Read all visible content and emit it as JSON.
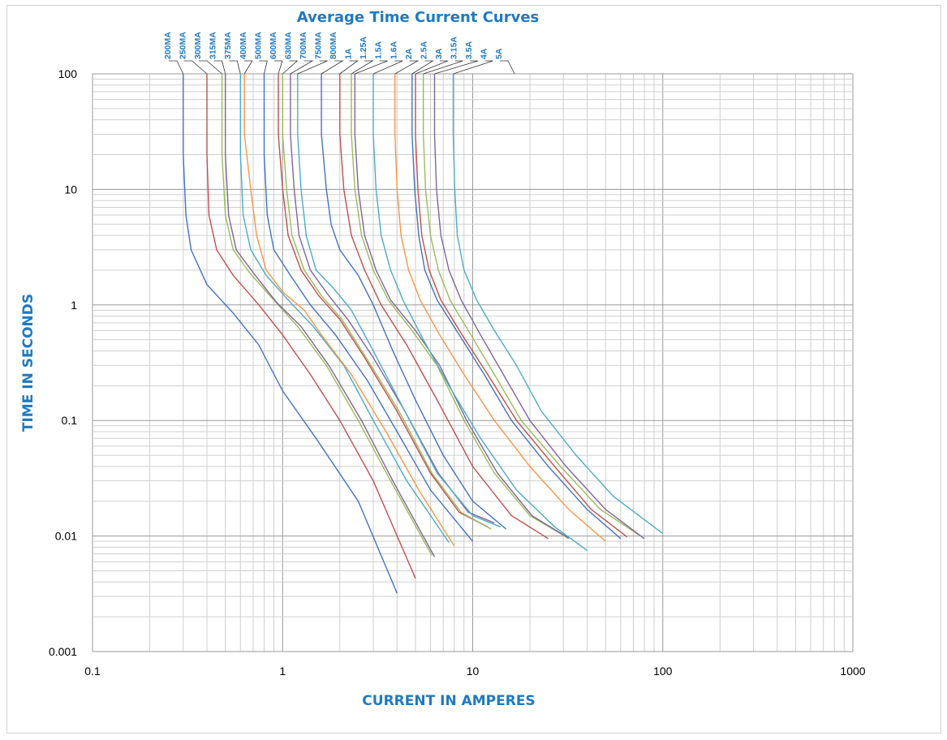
{
  "chart_data": {
    "type": "line",
    "title": "Average Time Current Curves",
    "xlabel": "CURRENT IN AMPERES",
    "ylabel": "TIME IN SECONDS",
    "x_scale": "log",
    "y_scale": "log",
    "xlim": [
      0.1,
      1000
    ],
    "ylim": [
      0.001,
      100
    ],
    "x_ticks": [
      "0.1",
      "1",
      "10",
      "100",
      "1000"
    ],
    "y_ticks": [
      "100",
      "10",
      "1",
      "0.1",
      "0.01",
      "0.001"
    ],
    "grid": true,
    "label_color": "#1f7ac2",
    "series": [
      {
        "name": "200MA",
        "color": "#4472c4",
        "points": [
          [
            0.3,
            100
          ],
          [
            0.3,
            20
          ],
          [
            0.31,
            6
          ],
          [
            0.33,
            3
          ],
          [
            0.4,
            1.5
          ],
          [
            0.55,
            0.85
          ],
          [
            0.75,
            0.45
          ],
          [
            1,
            0.18
          ],
          [
            1.5,
            0.07
          ],
          [
            2.5,
            0.02
          ],
          [
            4,
            0.0032
          ]
        ]
      },
      {
        "name": "250MA",
        "color": "#c0504d",
        "points": [
          [
            0.4,
            100
          ],
          [
            0.4,
            20
          ],
          [
            0.41,
            6
          ],
          [
            0.45,
            3
          ],
          [
            0.55,
            1.8
          ],
          [
            0.75,
            1.0
          ],
          [
            1.0,
            0.55
          ],
          [
            1.4,
            0.25
          ],
          [
            2,
            0.1
          ],
          [
            3,
            0.03
          ],
          [
            5,
            0.0043
          ]
        ]
      },
      {
        "name": "300MA",
        "color": "#9bbb59",
        "points": [
          [
            0.48,
            100
          ],
          [
            0.48,
            20
          ],
          [
            0.5,
            6
          ],
          [
            0.55,
            3
          ],
          [
            0.67,
            1.9
          ],
          [
            0.9,
            1.1
          ],
          [
            1.2,
            0.65
          ],
          [
            1.7,
            0.3
          ],
          [
            2.5,
            0.1
          ],
          [
            3.7,
            0.03
          ],
          [
            6.1,
            0.0068
          ]
        ]
      },
      {
        "name": "315MA",
        "color": "#8064a2",
        "points": [
          [
            0.5,
            100
          ],
          [
            0.5,
            20
          ],
          [
            0.52,
            6
          ],
          [
            0.57,
            3
          ],
          [
            0.7,
            1.9
          ],
          [
            0.93,
            1.05
          ],
          [
            1.25,
            0.65
          ],
          [
            1.75,
            0.3
          ],
          [
            2.6,
            0.1
          ],
          [
            3.8,
            0.03
          ],
          [
            6.3,
            0.0066
          ]
        ]
      },
      {
        "name": "375MA",
        "color": "#4bacc6",
        "points": [
          [
            0.6,
            100
          ],
          [
            0.6,
            20
          ],
          [
            0.62,
            6
          ],
          [
            0.68,
            3
          ],
          [
            0.82,
            1.8
          ],
          [
            1.1,
            1.05
          ],
          [
            1.45,
            0.65
          ],
          [
            2.1,
            0.3
          ],
          [
            3,
            0.1
          ],
          [
            4.5,
            0.03
          ],
          [
            7.5,
            0.0088
          ]
        ]
      },
      {
        "name": "400MA",
        "color": "#f79646",
        "points": [
          [
            0.63,
            100
          ],
          [
            0.63,
            30
          ],
          [
            0.68,
            10
          ],
          [
            0.73,
            4
          ],
          [
            0.82,
            2
          ],
          [
            1.0,
            1.3
          ],
          [
            1.3,
            0.9
          ],
          [
            1.6,
            0.55
          ],
          [
            2.3,
            0.25
          ],
          [
            3.5,
            0.08
          ],
          [
            5.2,
            0.025
          ],
          [
            8,
            0.0082
          ]
        ]
      },
      {
        "name": "500MA",
        "color": "#4472c4",
        "points": [
          [
            0.8,
            100
          ],
          [
            0.8,
            20
          ],
          [
            0.83,
            6
          ],
          [
            0.9,
            3
          ],
          [
            1.1,
            1.8
          ],
          [
            1.4,
            1.0
          ],
          [
            1.9,
            0.55
          ],
          [
            2.8,
            0.22
          ],
          [
            4,
            0.08
          ],
          [
            6,
            0.025
          ],
          [
            10,
            0.009
          ]
        ]
      },
      {
        "name": "600MA",
        "color": "#c0504d",
        "points": [
          [
            0.95,
            100
          ],
          [
            0.95,
            30
          ],
          [
            1.0,
            10
          ],
          [
            1.07,
            4
          ],
          [
            1.25,
            2
          ],
          [
            1.55,
            1.2
          ],
          [
            2,
            0.75
          ],
          [
            2.7,
            0.35
          ],
          [
            4,
            0.12
          ],
          [
            6,
            0.035
          ],
          [
            8.5,
            0.016
          ],
          [
            12,
            0.012
          ]
        ]
      },
      {
        "name": "630MA",
        "color": "#9bbb59",
        "points": [
          [
            1.0,
            100
          ],
          [
            1.0,
            30
          ],
          [
            1.05,
            10
          ],
          [
            1.12,
            4
          ],
          [
            1.3,
            2
          ],
          [
            1.6,
            1.2
          ],
          [
            2.05,
            0.75
          ],
          [
            2.75,
            0.35
          ],
          [
            4.1,
            0.12
          ],
          [
            6.1,
            0.035
          ],
          [
            8.7,
            0.016
          ],
          [
            12.5,
            0.0115
          ]
        ]
      },
      {
        "name": "700MA",
        "color": "#8064a2",
        "points": [
          [
            1.1,
            100
          ],
          [
            1.1,
            30
          ],
          [
            1.15,
            10
          ],
          [
            1.22,
            4
          ],
          [
            1.4,
            2
          ],
          [
            1.75,
            1.2
          ],
          [
            2.2,
            0.75
          ],
          [
            3,
            0.35
          ],
          [
            4.4,
            0.12
          ],
          [
            6.6,
            0.035
          ],
          [
            9.5,
            0.016
          ],
          [
            13,
            0.013
          ]
        ]
      },
      {
        "name": "750MA",
        "color": "#4bacc6",
        "points": [
          [
            1.2,
            100
          ],
          [
            1.2,
            30
          ],
          [
            1.25,
            10
          ],
          [
            1.33,
            4
          ],
          [
            1.5,
            2
          ],
          [
            1.85,
            1.4
          ],
          [
            2.3,
            0.9
          ],
          [
            3,
            0.4
          ],
          [
            4.4,
            0.12
          ],
          [
            6.5,
            0.035
          ],
          [
            10,
            0.015
          ],
          [
            14,
            0.012
          ]
        ]
      },
      {
        "name": "800MA",
        "color": "#4472c4",
        "points": [
          [
            1.6,
            100
          ],
          [
            1.6,
            30
          ],
          [
            1.7,
            10
          ],
          [
            1.8,
            5
          ],
          [
            2.0,
            3
          ],
          [
            2.5,
            1.8
          ],
          [
            3,
            1.0
          ],
          [
            3.8,
            0.4
          ],
          [
            5,
            0.15
          ],
          [
            7,
            0.05
          ],
          [
            10,
            0.02
          ],
          [
            15,
            0.0115
          ]
        ]
      },
      {
        "name": "1A",
        "color": "#c0504d",
        "points": [
          [
            2.0,
            100
          ],
          [
            2.0,
            30
          ],
          [
            2.1,
            10
          ],
          [
            2.3,
            4
          ],
          [
            2.7,
            2
          ],
          [
            3.3,
            1.0
          ],
          [
            4.5,
            0.45
          ],
          [
            6.5,
            0.15
          ],
          [
            10,
            0.04
          ],
          [
            16,
            0.015
          ],
          [
            25,
            0.0095
          ]
        ]
      },
      {
        "name": "1.25A",
        "color": "#9bbb59",
        "points": [
          [
            2.3,
            100
          ],
          [
            2.3,
            30
          ],
          [
            2.4,
            10
          ],
          [
            2.6,
            4
          ],
          [
            3,
            2
          ],
          [
            3.6,
            1.1
          ],
          [
            4.8,
            0.6
          ],
          [
            6.5,
            0.3
          ],
          [
            9,
            0.1
          ],
          [
            13,
            0.035
          ],
          [
            20,
            0.015
          ],
          [
            32,
            0.0095
          ]
        ]
      },
      {
        "name": "1.5A",
        "color": "#8064a2",
        "points": [
          [
            2.4,
            100
          ],
          [
            2.4,
            30
          ],
          [
            2.5,
            10
          ],
          [
            2.7,
            4
          ],
          [
            3.1,
            2
          ],
          [
            3.7,
            1.1
          ],
          [
            5,
            0.6
          ],
          [
            6.7,
            0.3
          ],
          [
            9.3,
            0.1
          ],
          [
            13.5,
            0.035
          ],
          [
            20.5,
            0.015
          ],
          [
            32,
            0.0096
          ]
        ]
      },
      {
        "name": "1.6A",
        "color": "#4bacc6",
        "points": [
          [
            3.0,
            100
          ],
          [
            3.0,
            30
          ],
          [
            3.1,
            10
          ],
          [
            3.3,
            4
          ],
          [
            3.7,
            2
          ],
          [
            4.3,
            1.1
          ],
          [
            5.5,
            0.5
          ],
          [
            7.5,
            0.2
          ],
          [
            11,
            0.07
          ],
          [
            17,
            0.025
          ],
          [
            27,
            0.012
          ],
          [
            40,
            0.0075
          ]
        ]
      },
      {
        "name": "2A",
        "color": "#f79646",
        "points": [
          [
            3.9,
            100
          ],
          [
            3.9,
            30
          ],
          [
            4.0,
            10
          ],
          [
            4.2,
            4
          ],
          [
            4.6,
            2
          ],
          [
            5.3,
            1.1
          ],
          [
            6.7,
            0.55
          ],
          [
            9,
            0.25
          ],
          [
            13,
            0.1
          ],
          [
            20,
            0.04
          ],
          [
            32,
            0.017
          ],
          [
            50,
            0.009
          ]
        ]
      },
      {
        "name": "2.5A",
        "color": "#4472c4",
        "points": [
          [
            4.8,
            100
          ],
          [
            4.8,
            30
          ],
          [
            4.95,
            10
          ],
          [
            5.2,
            4
          ],
          [
            5.6,
            2
          ],
          [
            6.5,
            1.1
          ],
          [
            8.5,
            0.55
          ],
          [
            11.5,
            0.25
          ],
          [
            16,
            0.1
          ],
          [
            25,
            0.04
          ],
          [
            40,
            0.017
          ],
          [
            60,
            0.0095
          ]
        ]
      },
      {
        "name": "3A",
        "color": "#c0504d",
        "points": [
          [
            5.0,
            100
          ],
          [
            5.0,
            30
          ],
          [
            5.15,
            10
          ],
          [
            5.4,
            4
          ],
          [
            5.9,
            2
          ],
          [
            6.8,
            1.1
          ],
          [
            8.8,
            0.55
          ],
          [
            12,
            0.25
          ],
          [
            17,
            0.1
          ],
          [
            27,
            0.04
          ],
          [
            42,
            0.017
          ],
          [
            65,
            0.0098
          ]
        ]
      },
      {
        "name": "3.15A",
        "color": "#9bbb59",
        "points": [
          [
            5.5,
            100
          ],
          [
            5.5,
            30
          ],
          [
            5.65,
            10
          ],
          [
            6.0,
            4
          ],
          [
            6.6,
            2
          ],
          [
            7.6,
            1.1
          ],
          [
            9.8,
            0.55
          ],
          [
            13,
            0.25
          ],
          [
            18,
            0.1
          ],
          [
            29,
            0.04
          ],
          [
            47,
            0.017
          ],
          [
            75,
            0.0102
          ]
        ]
      },
      {
        "name": "3.5A",
        "color": "#8064a2",
        "points": [
          [
            6.3,
            100
          ],
          [
            6.3,
            30
          ],
          [
            6.45,
            10
          ],
          [
            6.8,
            4
          ],
          [
            7.5,
            2
          ],
          [
            8.7,
            1.1
          ],
          [
            11,
            0.55
          ],
          [
            14.5,
            0.25
          ],
          [
            20,
            0.1
          ],
          [
            31,
            0.04
          ],
          [
            50,
            0.017
          ],
          [
            80,
            0.0095
          ]
        ]
      },
      {
        "name": "4A",
        "color": "#4bacc6",
        "points": [
          [
            7.9,
            100
          ],
          [
            7.9,
            30
          ],
          [
            8.05,
            10
          ],
          [
            8.3,
            4
          ],
          [
            9,
            2
          ],
          [
            10.5,
            1.1
          ],
          [
            13,
            0.6
          ],
          [
            17,
            0.3
          ],
          [
            23,
            0.12
          ],
          [
            35,
            0.05
          ],
          [
            55,
            0.022
          ],
          [
            100,
            0.0105
          ]
        ]
      },
      {
        "name": "5A",
        "color": "#4bacc6",
        "points": []
      }
    ]
  }
}
